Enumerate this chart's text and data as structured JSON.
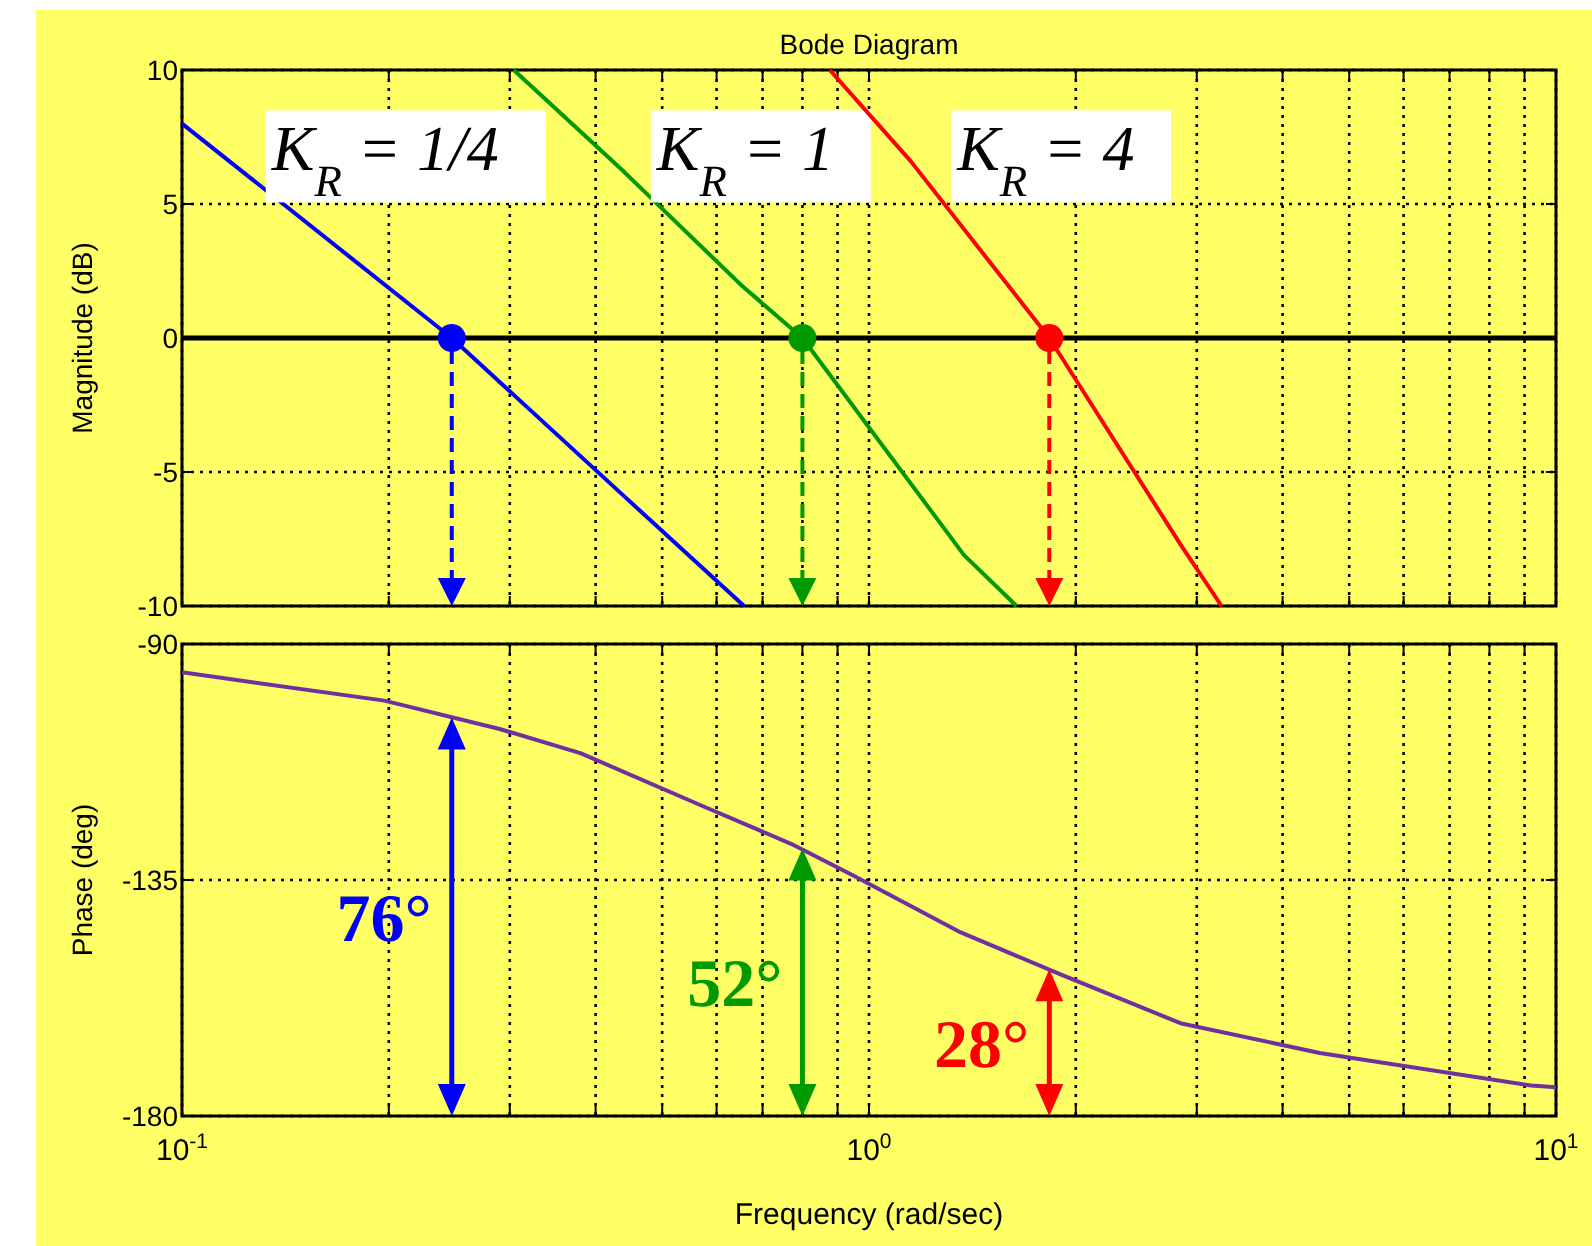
{
  "chart_data": [
    {
      "type": "line",
      "title": "Bode Diagram",
      "ylabel": "Magnitude (dB)",
      "log": "x",
      "xlim": [
        0.1,
        10
      ],
      "ylim": [
        -10,
        10
      ],
      "xticks": [
        {
          "value": 0.1,
          "label": null
        },
        {
          "value": 0.2,
          "label": null
        },
        {
          "value": 0.3,
          "label": null
        },
        {
          "value": 0.4,
          "label": null
        },
        {
          "value": 0.5,
          "label": null
        },
        {
          "value": 0.6,
          "label": null
        },
        {
          "value": 0.7,
          "label": null
        },
        {
          "value": 0.8,
          "label": null
        },
        {
          "value": 0.9,
          "label": null
        },
        {
          "value": 1,
          "label": null
        },
        {
          "value": 2,
          "label": null
        },
        {
          "value": 3,
          "label": null
        },
        {
          "value": 4,
          "label": null
        },
        {
          "value": 5,
          "label": null
        },
        {
          "value": 6,
          "label": null
        },
        {
          "value": 7,
          "label": null
        },
        {
          "value": 8,
          "label": null
        },
        {
          "value": 9,
          "label": null
        },
        {
          "value": 10,
          "label": null
        }
      ],
      "yticks": [
        -10,
        -5,
        0,
        5,
        10
      ],
      "grid": true,
      "tick_labels": "y",
      "line_style": "solid",
      "ref_lines": [
        {
          "axis": "y",
          "value": 0,
          "color": "#000000"
        }
      ],
      "series": [
        {
          "name": "K$_{R}$ = 1/4",
          "color": "#0000ff",
          "x": [
            0.1,
            0.247,
            0.44,
            0.658
          ],
          "values": [
            8,
            0,
            -5.9,
            -10
          ]
        },
        {
          "name": "K$_{R}$ = 1",
          "color": "#009900",
          "x": [
            0.304,
            0.44,
            0.65,
            0.8,
            1.375,
            1.64
          ],
          "values": [
            10,
            6.2,
            2,
            0,
            -8.1,
            -10
          ]
        },
        {
          "name": "K$_{R}$ = 4",
          "color": "#ff0000",
          "x": [
            0.877,
            1.15,
            1.83,
            2.84,
            3.26
          ],
          "values": [
            10,
            6.6,
            0,
            -7.7,
            -10
          ]
        },
        {
          "type": "scatter",
          "marker": "circle",
          "x": [
            0.247,
            0.8,
            1.83
          ],
          "values": [
            0,
            0,
            0
          ],
          "colors": [
            "#0000ff",
            "#009900",
            "#ff0000"
          ]
        }
      ]
    },
    {
      "type": "line",
      "ylabel": "Phase (deg)",
      "xlabel": "Frequency (rad/sec)",
      "log": "x",
      "xlim": [
        0.1,
        10
      ],
      "ylim": [
        -180,
        -90
      ],
      "xticks": [
        {
          "value": 0.1,
          "label": "10$^{-1}$"
        },
        {
          "value": 0.2,
          "label": null
        },
        {
          "value": 0.3,
          "label": null
        },
        {
          "value": 0.4,
          "label": null
        },
        {
          "value": 0.5,
          "label": null
        },
        {
          "value": 0.6,
          "label": null
        },
        {
          "value": 0.7,
          "label": null
        },
        {
          "value": 0.8,
          "label": null
        },
        {
          "value": 0.9,
          "label": null
        },
        {
          "value": 1,
          "label": "10$^{0}$"
        },
        {
          "value": 2,
          "label": null
        },
        {
          "value": 3,
          "label": null
        },
        {
          "value": 4,
          "label": null
        },
        {
          "value": 5,
          "label": null
        },
        {
          "value": 6,
          "label": null
        },
        {
          "value": 7,
          "label": null
        },
        {
          "value": 8,
          "label": null
        },
        {
          "value": 9,
          "label": null
        },
        {
          "value": 10,
          "label": "10$^{1}$"
        }
      ],
      "yticks": [
        -90,
        -135,
        -180
      ],
      "grid": true,
      "line_style": "solid",
      "series": [
        {
          "color": "#7030a0",
          "x": [
            0.1,
            0.197,
            0.29,
            0.38,
            0.57,
            0.77,
            0.95,
            1.36,
            1.9,
            2.84,
            4.53,
            9.2,
            10
          ],
          "values": [
            -95.4,
            -100.8,
            -106.2,
            -110.8,
            -120.8,
            -128.1,
            -134.2,
            -145,
            -153,
            -162.3,
            -168,
            -174.2,
            -174.5
          ]
        }
      ],
      "annotations": [
        {
          "text": "76°",
          "x": 0.247,
          "y": -104
        },
        {
          "text": "52°",
          "x": 0.8,
          "y": -129
        },
        {
          "text": "28°",
          "x": 1.83,
          "y": -152
        }
      ]
    }
  ]
}
